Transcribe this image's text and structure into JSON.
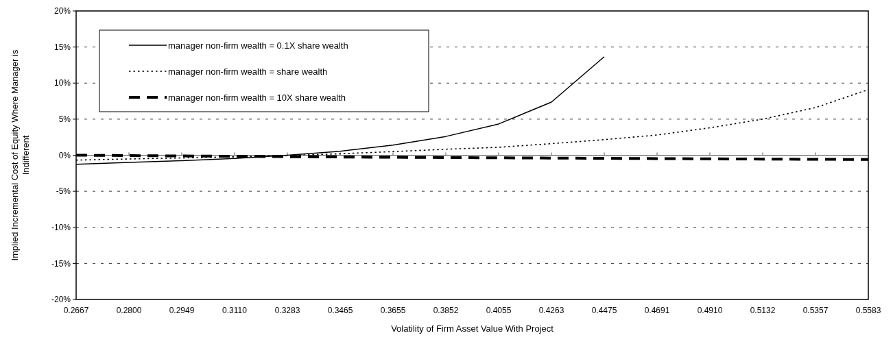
{
  "chart_data": {
    "type": "line",
    "xlabel": "Volatility of Firm Asset Value With Project",
    "ylabel": "Implied Incremental Cost of Equity Where Manager is Indifferent",
    "categories": [
      "0.2667",
      "0.2800",
      "0.2949",
      "0.3110",
      "0.3283",
      "0.3465",
      "0.3655",
      "0.3852",
      "0.4055",
      "0.4263",
      "0.4475",
      "0.4691",
      "0.4910",
      "0.5132",
      "0.5357",
      "0.5583"
    ],
    "series": [
      {
        "name": "manager non-firm wealth = 0.1X share wealth",
        "color": "#000000",
        "line_style": "solid",
        "values": [
          -1.25,
          -1.0,
          -0.75,
          -0.45,
          0.0,
          0.55,
          1.4,
          2.6,
          4.33,
          7.36,
          13.66,
          null,
          null,
          null,
          null,
          null
        ]
      },
      {
        "name": "manager non-firm wealth = share wealth",
        "color": "#000000",
        "line_style": "dotted",
        "values": [
          -0.68,
          -0.52,
          -0.38,
          -0.22,
          -0.05,
          0.2,
          0.5,
          0.83,
          1.1,
          1.6,
          2.16,
          2.8,
          3.8,
          5.0,
          6.6,
          9.1
        ]
      },
      {
        "name": "manager non-firm wealth = 10X share wealth",
        "color": "#000000",
        "line_style": "dashed",
        "values": [
          0.0,
          -0.05,
          -0.1,
          -0.15,
          -0.2,
          -0.25,
          -0.29,
          -0.33,
          -0.36,
          -0.4,
          -0.43,
          -0.47,
          -0.5,
          -0.54,
          -0.57,
          -0.6
        ]
      }
    ],
    "ylim": [
      -20,
      20
    ],
    "yticks": [
      {
        "value": -20,
        "label": "-20%"
      },
      {
        "value": -15,
        "label": "-15%"
      },
      {
        "value": -10,
        "label": "-10%"
      },
      {
        "value": -5,
        "label": "-5%"
      },
      {
        "value": 0,
        "label": "0%"
      },
      {
        "value": 5,
        "label": "5%"
      },
      {
        "value": 10,
        "label": "10%"
      },
      {
        "value": 15,
        "label": "15%"
      },
      {
        "value": 20,
        "label": "20%"
      }
    ],
    "grid": "y",
    "legend": "top left",
    "marker": "none"
  }
}
